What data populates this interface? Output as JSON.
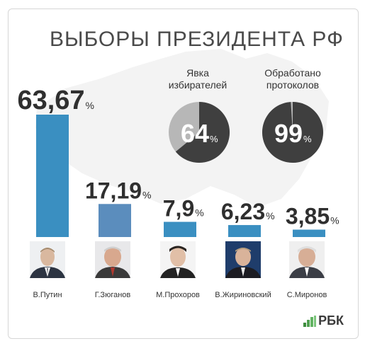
{
  "title": "ВЫБОРЫ ПРЕЗИДЕНТА РФ",
  "pies": [
    {
      "label_line1": "Явка",
      "label_line2": "избирателей",
      "value": 64,
      "suffix": "%"
    },
    {
      "label_line1": "Обработано",
      "label_line2": "протоколов",
      "value": 99,
      "suffix": "%"
    }
  ],
  "colors": {
    "bar": "#3a8fc1",
    "bar_alt": "#5b8dbd",
    "pie_dark": "#3f3f3f",
    "pie_light": "#b7b7b7",
    "value_text": "#2f2f2f"
  },
  "chart_data": {
    "type": "bar",
    "categories": [
      "В.Путин",
      "Г.Зюганов",
      "М.Прохоров",
      "В.Жириновский",
      "С.Миронов"
    ],
    "values": [
      63.67,
      17.19,
      7.9,
      6.23,
      3.85
    ],
    "value_labels": [
      "63,67",
      "17,19",
      "7,9",
      "6,23",
      "3,85"
    ],
    "unit": "%",
    "title": "ВЫБОРЫ ПРЕЗИДЕНТА РФ",
    "ylim": [
      0,
      63.67
    ]
  },
  "logo": {
    "text": "РБК"
  }
}
